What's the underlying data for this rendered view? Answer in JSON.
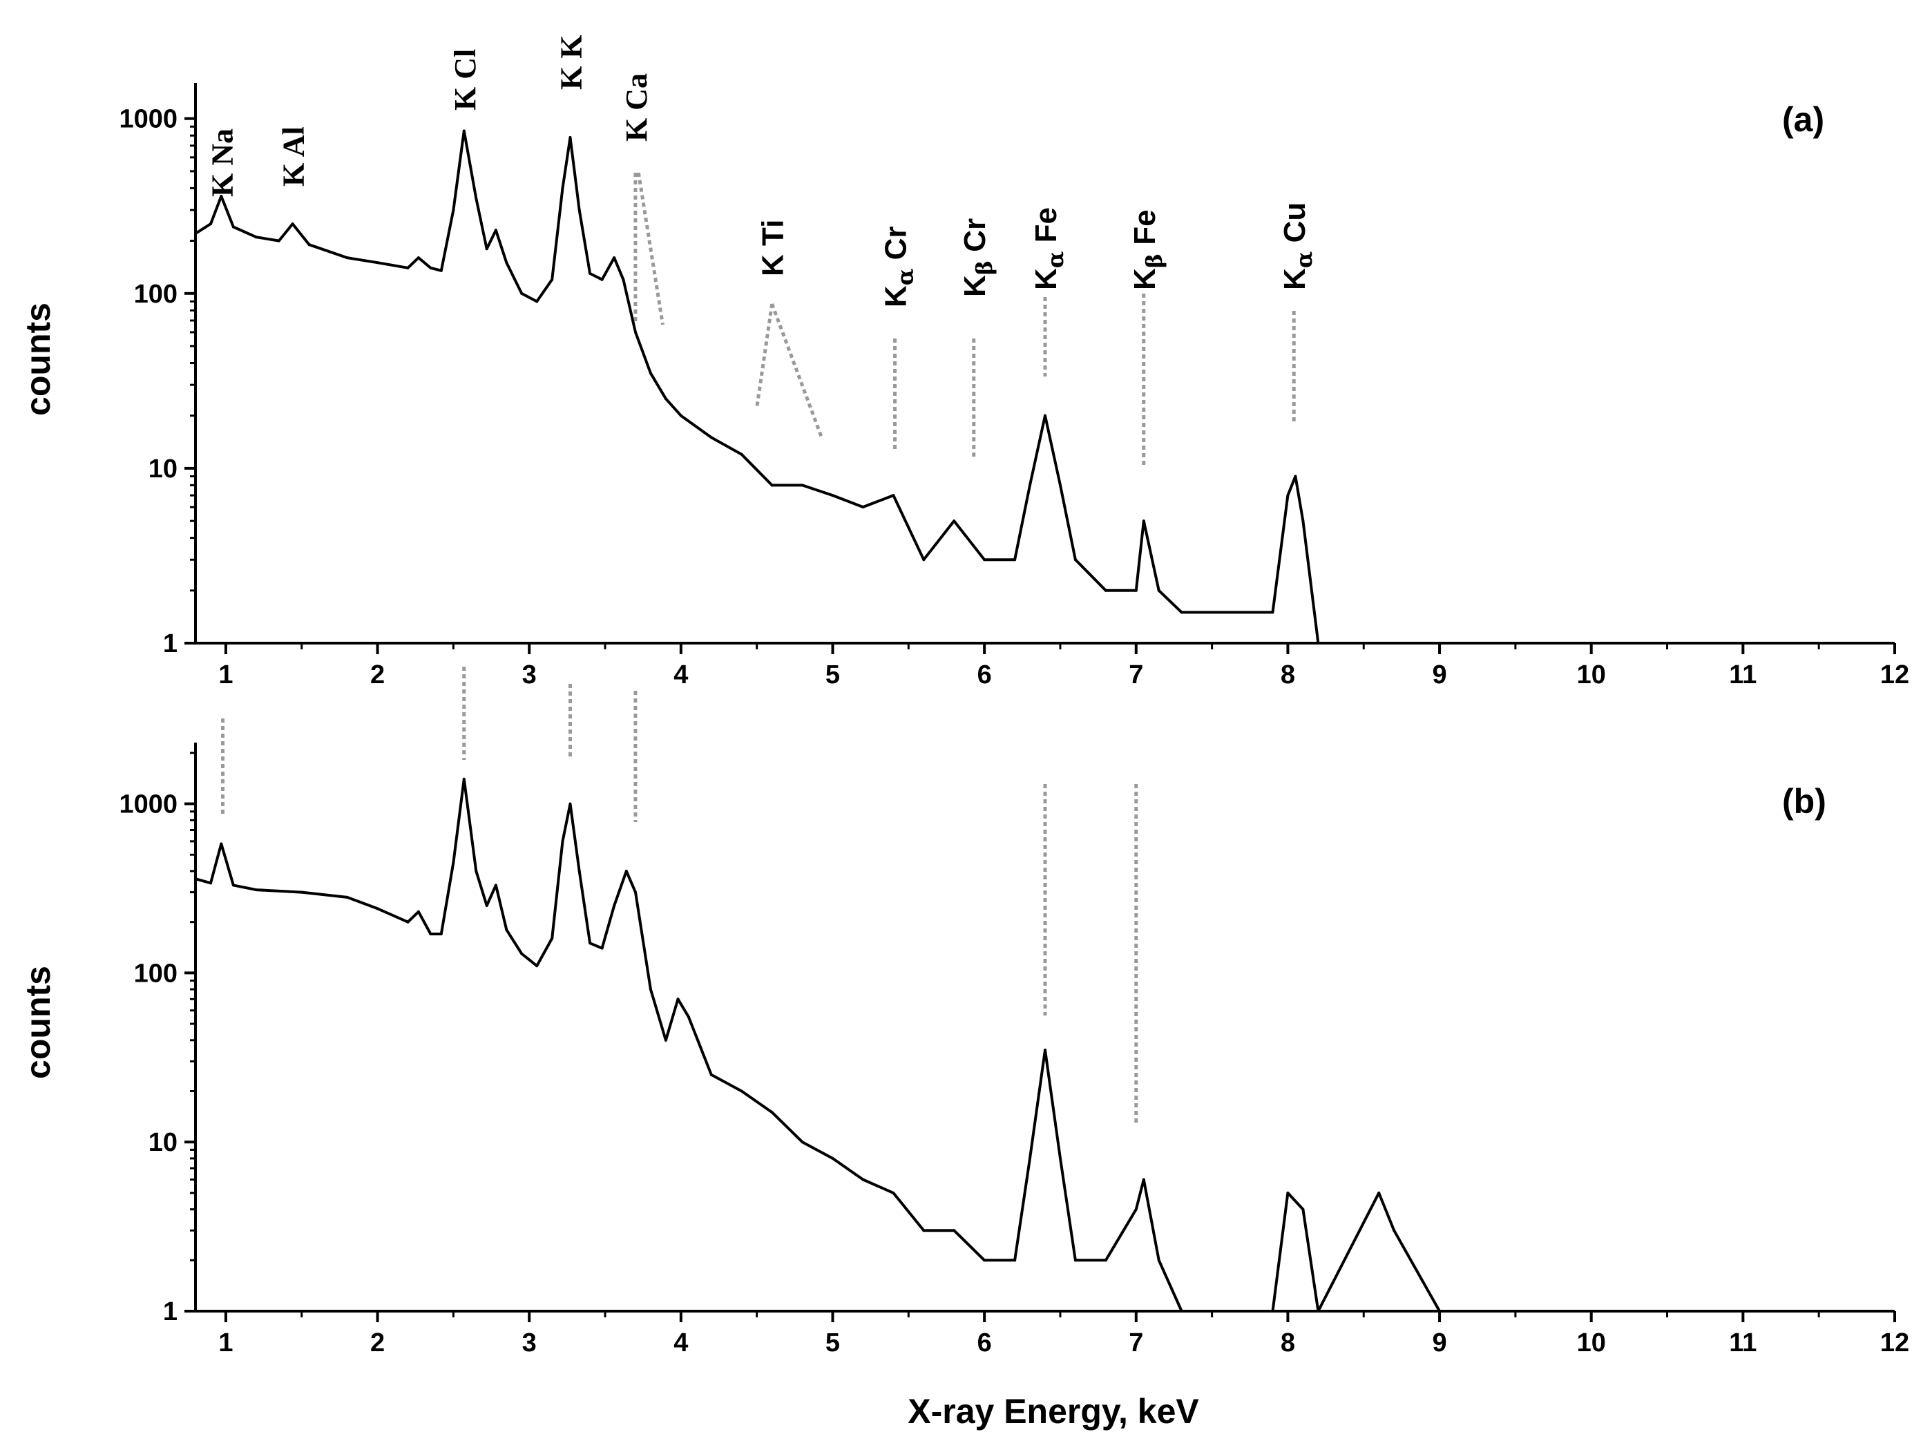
{
  "chart_data": [
    {
      "panel": "(a)",
      "type": "line",
      "title": "",
      "xlabel": "",
      "ylabel": "counts",
      "xlim": [
        0.8,
        12
      ],
      "ylim": [
        1,
        1000
      ],
      "yscale": "log",
      "x_ticks": [
        "1",
        "2",
        "3",
        "4",
        "5",
        "6",
        "7",
        "8",
        "9",
        "10",
        "11",
        "12"
      ],
      "y_ticks": [
        "1",
        "10",
        "100",
        "1000"
      ],
      "grid": false,
      "series": [
        {
          "x": [
            0.8,
            0.9,
            0.97,
            1.05,
            1.2,
            1.35,
            1.44,
            1.55,
            1.8,
            2.0,
            2.2,
            2.27,
            2.35,
            2.42,
            2.5,
            2.57,
            2.65,
            2.72,
            2.78,
            2.85,
            2.95,
            3.05,
            3.15,
            3.22,
            3.27,
            3.33,
            3.4,
            3.48,
            3.56,
            3.62,
            3.7,
            3.8,
            3.9,
            4.0,
            4.2,
            4.4,
            4.6,
            4.8,
            5.0,
            5.2,
            5.4,
            5.6,
            5.8,
            6.0,
            6.2,
            6.3,
            6.4,
            6.5,
            6.6,
            6.8,
            7.0,
            7.05,
            7.15,
            7.3,
            7.9,
            8.0,
            8.05,
            8.1,
            8.2
          ],
          "y": [
            220,
            250,
            360,
            240,
            210,
            200,
            250,
            190,
            160,
            150,
            140,
            160,
            140,
            135,
            300,
            850,
            350,
            180,
            230,
            150,
            100,
            90,
            120,
            400,
            780,
            300,
            130,
            120,
            160,
            120,
            60,
            35,
            25,
            20,
            15,
            12,
            8,
            8,
            7,
            6,
            7,
            3,
            5,
            3,
            3,
            8,
            20,
            8,
            3,
            2,
            2,
            5,
            2,
            1.5,
            1.5,
            7,
            9,
            5,
            1
          ]
        }
      ],
      "annotations": [
        {
          "label": "K Na",
          "x": 0.97
        },
        {
          "label": "K Al",
          "x": 1.44
        },
        {
          "label": "K Cl",
          "x": 2.57
        },
        {
          "label": "K K",
          "x": 3.27
        },
        {
          "label": "K Ca",
          "x": 3.7
        },
        {
          "label": "K Ti",
          "x": 4.6
        },
        {
          "label": "Kα Cr",
          "x": 5.41
        },
        {
          "label": "Kβ Cr",
          "x": 5.93
        },
        {
          "label": "Kα Fe",
          "x": 6.4
        },
        {
          "label": "Kβ Fe",
          "x": 7.05
        },
        {
          "label": "Kα Cu",
          "x": 8.04
        }
      ]
    },
    {
      "panel": "(b)",
      "type": "line",
      "title": "",
      "xlabel": "X-ray Energy, keV",
      "ylabel": "counts",
      "xlim": [
        0.8,
        12
      ],
      "ylim": [
        1,
        1500
      ],
      "yscale": "log",
      "x_ticks": [
        "1",
        "2",
        "3",
        "4",
        "5",
        "6",
        "7",
        "8",
        "9",
        "10",
        "11",
        "12"
      ],
      "y_ticks": [
        "1",
        "10",
        "100",
        "1000"
      ],
      "grid": false,
      "series": [
        {
          "x": [
            0.8,
            0.9,
            0.97,
            1.05,
            1.2,
            1.5,
            1.8,
            2.0,
            2.2,
            2.27,
            2.35,
            2.42,
            2.5,
            2.57,
            2.65,
            2.72,
            2.78,
            2.85,
            2.95,
            3.05,
            3.15,
            3.22,
            3.27,
            3.33,
            3.4,
            3.48,
            3.56,
            3.64,
            3.7,
            3.8,
            3.9,
            3.98,
            4.05,
            4.2,
            4.4,
            4.6,
            4.8,
            5.0,
            5.2,
            5.4,
            5.6,
            5.8,
            6.0,
            6.2,
            6.3,
            6.4,
            6.5,
            6.6,
            6.8,
            7.0,
            7.05,
            7.15,
            7.3,
            7.9,
            8.0,
            8.1,
            8.2,
            8.6,
            8.7,
            9.0
          ],
          "y": [
            360,
            340,
            580,
            330,
            310,
            300,
            280,
            240,
            200,
            230,
            170,
            170,
            450,
            1400,
            400,
            250,
            330,
            180,
            130,
            110,
            160,
            600,
            1000,
            400,
            150,
            140,
            250,
            400,
            300,
            80,
            40,
            70,
            55,
            25,
            20,
            15,
            10,
            8,
            6,
            5,
            3,
            3,
            2,
            2,
            8,
            35,
            8,
            2,
            2,
            4,
            6,
            2,
            1,
            1,
            5,
            4,
            1,
            5,
            3,
            1
          ]
        }
      ],
      "annotations": []
    }
  ]
}
